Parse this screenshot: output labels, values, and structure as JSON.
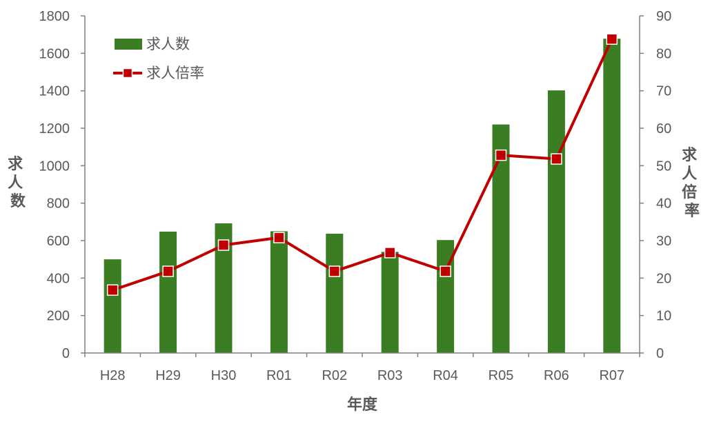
{
  "chart_data": {
    "type": "bar",
    "categories": [
      "H28",
      "H29",
      "H30",
      "R01",
      "R02",
      "R03",
      "R04",
      "R05",
      "R06",
      "R07"
    ],
    "series": [
      {
        "name": "求人数",
        "type": "bar",
        "axis": "left",
        "color": "#3a7d22",
        "values": [
          500,
          648,
          692,
          650,
          637,
          540,
          603,
          1220,
          1402,
          1678
        ]
      },
      {
        "name": "求人倍率",
        "type": "line",
        "axis": "right",
        "color": "#c00000",
        "values": [
          16.8,
          21.8,
          28.8,
          30.8,
          21.8,
          26.8,
          21.8,
          52.8,
          51.8,
          83.8
        ]
      }
    ],
    "xlabel": "年度",
    "ylabel_left": "求人数",
    "ylabel_right": "求人倍率",
    "ylim_left": [
      0,
      1800
    ],
    "ylim_right": [
      0,
      90
    ],
    "yticks_left": [
      "0",
      "200",
      "400",
      "600",
      "800",
      "1000",
      "1200",
      "1400",
      "1600",
      "1800"
    ],
    "yticks_right": [
      "0",
      "10",
      "20",
      "30",
      "40",
      "50",
      "60",
      "70",
      "80",
      "90"
    ],
    "grid": false,
    "legend_position": "top-left"
  }
}
